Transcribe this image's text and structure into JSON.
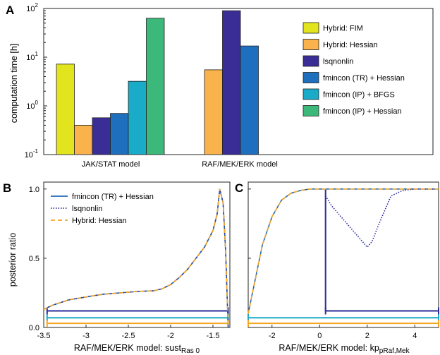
{
  "colors": {
    "hybrid_fim": "#e2e41d",
    "hybrid_hessian": "#f9b24c",
    "lsqnonlin": "#3b2d96",
    "fmincon_tr_hessian": "#1e6fbd",
    "fmincon_ip_bfgs": "#1aabc9",
    "fmincon_ip_hessian": "#3cb87b",
    "line_fmincon": "#1f67b4",
    "line_lsqnonlin": "#2b2b9a",
    "line_hybrid": "#f5a623"
  },
  "chart_data": [
    {
      "panel": "A",
      "type": "bar",
      "yscale": "log",
      "ylim": [
        0.1,
        100
      ],
      "ylabel": "computation time [h]",
      "yticks": [
        "10",
        "10",
        "10",
        "10"
      ],
      "ytick_exponents": [
        "-1",
        "0",
        "1",
        "2"
      ],
      "categories": [
        "JAK/STAT model",
        "RAF/MEK/ERK model"
      ],
      "legend_position": "right",
      "series": [
        {
          "name": "Hybrid: FIM",
          "values": [
            7.2,
            null
          ]
        },
        {
          "name": "Hybrid: Hessian",
          "values": [
            0.4,
            5.5
          ]
        },
        {
          "name": "lsqnonlin",
          "values": [
            0.57,
            90
          ]
        },
        {
          "name": "fmincon (TR) + Hessian",
          "values": [
            0.7,
            17
          ]
        },
        {
          "name": "fmincon (IP) + BFGS",
          "values": [
            3.2,
            null
          ]
        },
        {
          "name": "fmincon (IP) + Hessian",
          "values": [
            63,
            null
          ]
        }
      ]
    },
    {
      "panel": "B",
      "type": "line",
      "xlabel": "RAF/MEK/ERK model: sust",
      "xlabel_sub": "Ras 0",
      "ylabel": "posterior ratio",
      "xlim": [
        -3.5,
        -1.3
      ],
      "ylim": [
        0,
        1.05
      ],
      "xticks": [
        "-3.5",
        "-3",
        "-2.5",
        "-2",
        "-1.5"
      ],
      "yticks": [
        "0.0",
        "0.5",
        "1.0"
      ],
      "legend_position": "top-left",
      "series": [
        {
          "name": "fmincon (TR) + Hessian",
          "x": [
            -3.5,
            -3.4,
            -3.2,
            -3.0,
            -2.8,
            -2.6,
            -2.4,
            -2.2,
            -2.1,
            -2.0,
            -1.9,
            -1.8,
            -1.7,
            -1.6,
            -1.5,
            -1.45,
            -1.42,
            -1.38,
            -1.35,
            -1.32
          ],
          "y": [
            0.13,
            0.16,
            0.2,
            0.22,
            0.24,
            0.25,
            0.26,
            0.265,
            0.28,
            0.31,
            0.36,
            0.42,
            0.5,
            0.58,
            0.7,
            0.82,
            1.0,
            0.9,
            0.55,
            0.0
          ]
        },
        {
          "name": "lsqnonlin",
          "x": [
            -3.5,
            -3.4,
            -3.2,
            -3.0,
            -2.8,
            -2.6,
            -2.4,
            -2.2,
            -2.1,
            -2.0,
            -1.9,
            -1.8,
            -1.7,
            -1.6,
            -1.5,
            -1.45,
            -1.42,
            -1.38,
            -1.35,
            -1.32
          ],
          "y": [
            0.13,
            0.16,
            0.2,
            0.22,
            0.24,
            0.25,
            0.26,
            0.265,
            0.28,
            0.31,
            0.36,
            0.42,
            0.5,
            0.58,
            0.7,
            0.82,
            1.0,
            0.9,
            0.55,
            0.0
          ]
        },
        {
          "name": "Hybrid: Hessian",
          "x": [
            -3.5,
            -3.4,
            -3.2,
            -3.0,
            -2.8,
            -2.6,
            -2.4,
            -2.2,
            -2.1,
            -2.0,
            -1.9,
            -1.8,
            -1.7,
            -1.6,
            -1.5,
            -1.45,
            -1.42,
            -1.38,
            -1.35,
            -1.32
          ],
          "y": [
            0.13,
            0.16,
            0.2,
            0.22,
            0.24,
            0.25,
            0.26,
            0.265,
            0.28,
            0.31,
            0.36,
            0.42,
            0.5,
            0.58,
            0.7,
            0.82,
            1.0,
            0.9,
            0.55,
            0.0
          ]
        }
      ],
      "intervals": [
        {
          "name": "lsqnonlin",
          "x": [
            -3.46,
            -1.32
          ],
          "y": 0.12
        },
        {
          "name": "fmincon (TR) + Hessian",
          "x": [
            -3.46,
            -1.32
          ],
          "y": 0.07
        },
        {
          "name": "Hybrid: Hessian",
          "x": [
            -3.46,
            -1.32
          ],
          "y": 0.03
        }
      ]
    },
    {
      "panel": "C",
      "type": "line",
      "xlabel": "RAF/MEK/ERK model: kp",
      "xlabel_sub": "pRaf,Mek",
      "xlim": [
        -3,
        5
      ],
      "ylim": [
        0,
        1.05
      ],
      "xticks": [
        "-2",
        "0",
        "2",
        "4"
      ],
      "yticks": [],
      "series": [
        {
          "name": "fmincon (TR) + Hessian",
          "x": [
            -3.0,
            -2.7,
            -2.4,
            -2.0,
            -1.6,
            -1.2,
            -0.8,
            -0.4,
            0.0,
            1.0,
            2.0,
            3.0,
            4.0,
            5.0
          ],
          "y": [
            0.1,
            0.35,
            0.6,
            0.8,
            0.92,
            0.97,
            0.99,
            1.0,
            1.0,
            1.0,
            1.0,
            1.0,
            1.0,
            1.0
          ]
        },
        {
          "name": "lsqnonlin",
          "x": [
            0.25,
            0.5,
            1.0,
            1.5,
            2.0,
            2.2,
            2.5,
            3.0,
            3.5,
            4.0,
            5.0
          ],
          "y": [
            0.95,
            0.88,
            0.78,
            0.68,
            0.58,
            0.62,
            0.75,
            0.95,
            0.99,
            1.0,
            1.0
          ]
        },
        {
          "name": "Hybrid: Hessian",
          "x": [
            -3.0,
            -2.7,
            -2.4,
            -2.0,
            -1.6,
            -1.2,
            -0.8,
            -0.4,
            0.0,
            1.0,
            2.0,
            3.0,
            4.0,
            5.0
          ],
          "y": [
            0.1,
            0.35,
            0.6,
            0.8,
            0.92,
            0.97,
            0.99,
            1.0,
            1.0,
            1.0,
            1.0,
            1.0,
            1.0,
            1.0
          ]
        }
      ],
      "intervals": [
        {
          "name": "lsqnonlin",
          "x": [
            0.25,
            5.0
          ],
          "y": 0.12
        },
        {
          "name": "fmincon (TR) + Hessian",
          "x": [
            -3.0,
            5.0
          ],
          "y": 0.07
        },
        {
          "name": "Hybrid: Hessian",
          "x": [
            -3.0,
            5.0
          ],
          "y": 0.03
        }
      ]
    }
  ]
}
